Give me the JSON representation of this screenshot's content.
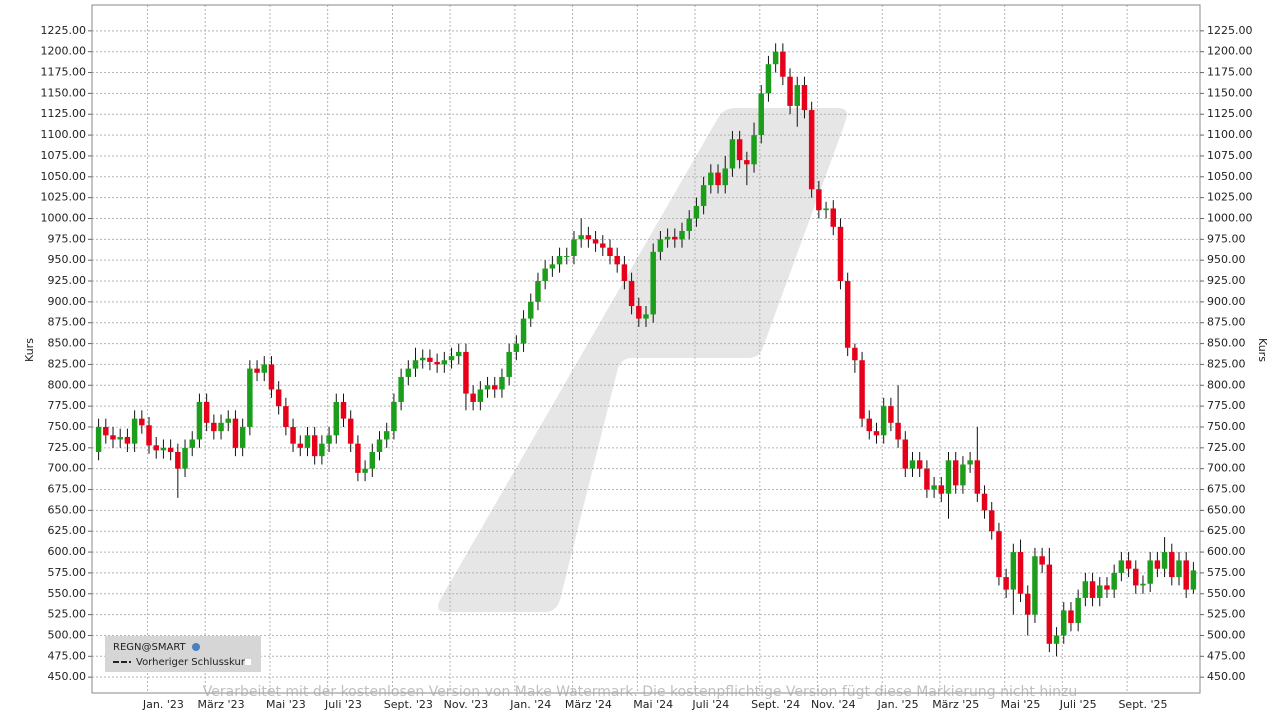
{
  "chart_data": {
    "type": "candlestick",
    "y_label": "Kurs",
    "legend_series_label": "Vorheriger Schlusskurs",
    "watermark": "Verarbeitet mit der kostenlosen Version von Make Watermark. Die kostenpflichtige Version fügt diese Markierung nicht hinzu",
    "grid": true,
    "up_color": "#1c9e1c",
    "down_color": "#e6001a",
    "ylim": [
      431,
      1256
    ],
    "yticks": [
      {
        "value": 450,
        "label": "450.00"
      },
      {
        "value": 475,
        "label": "475.00"
      },
      {
        "value": 500,
        "label": "500.00"
      },
      {
        "value": 525,
        "label": "525.00"
      },
      {
        "value": 550,
        "label": "550.00"
      },
      {
        "value": 575,
        "label": "575.00"
      },
      {
        "value": 600,
        "label": "600.00"
      },
      {
        "value": 625,
        "label": "625.00"
      },
      {
        "value": 650,
        "label": "650.00"
      },
      {
        "value": 675,
        "label": "675.00"
      },
      {
        "value": 700,
        "label": "700.00"
      },
      {
        "value": 725,
        "label": "725.00"
      },
      {
        "value": 750,
        "label": "750.00"
      },
      {
        "value": 775,
        "label": "775.00"
      },
      {
        "value": 800,
        "label": "800.00"
      },
      {
        "value": 825,
        "label": "825.00"
      },
      {
        "value": 850,
        "label": "850.00"
      },
      {
        "value": 875,
        "label": "875.00"
      },
      {
        "value": 900,
        "label": "900.00"
      },
      {
        "value": 925,
        "label": "925.00"
      },
      {
        "value": 950,
        "label": "950.00"
      },
      {
        "value": 975,
        "label": "975.00"
      },
      {
        "value": 1000,
        "label": "1000.00"
      },
      {
        "value": 1025,
        "label": "1025.00"
      },
      {
        "value": 1050,
        "label": "1050.00"
      },
      {
        "value": 1075,
        "label": "1075.00"
      },
      {
        "value": 1100,
        "label": "1100.00"
      },
      {
        "value": 1125,
        "label": "1125.00"
      },
      {
        "value": 1150,
        "label": "1150.00"
      },
      {
        "value": 1175,
        "label": "1175.00"
      },
      {
        "value": 1200,
        "label": "1200.00"
      },
      {
        "value": 1225,
        "label": "1225.00"
      }
    ],
    "categories": [
      null,
      null,
      null,
      null,
      null,
      null,
      null,
      null,
      null,
      "Jan. '23",
      null,
      null,
      null,
      null,
      null,
      null,
      null,
      "März '23",
      null,
      null,
      null,
      null,
      null,
      null,
      null,
      null,
      "Mai '23",
      null,
      null,
      null,
      null,
      null,
      null,
      null,
      "Juli '23",
      null,
      null,
      null,
      null,
      null,
      null,
      null,
      null,
      "Sept. '23",
      null,
      null,
      null,
      null,
      null,
      null,
      null,
      "Nov. '23",
      null,
      null,
      null,
      null,
      null,
      null,
      null,
      null,
      "Jan. '24",
      null,
      null,
      null,
      null,
      null,
      null,
      null,
      "März '24",
      null,
      null,
      null,
      null,
      null,
      null,
      null,
      null,
      "Mai '24",
      null,
      null,
      null,
      null,
      null,
      null,
      null,
      "Juli '24",
      null,
      null,
      null,
      null,
      null,
      null,
      null,
      null,
      "Sept. '24",
      null,
      null,
      null,
      null,
      null,
      null,
      null,
      "Nov. '24",
      null,
      null,
      null,
      null,
      null,
      null,
      null,
      null,
      "Jan. '25",
      null,
      null,
      null,
      null,
      null,
      null,
      null,
      "März '25",
      null,
      null,
      null,
      null,
      null,
      null,
      null,
      null,
      "Mai '25",
      null,
      null,
      null,
      null,
      null,
      null,
      null,
      "Juli '25",
      null,
      null,
      null,
      null,
      null,
      null,
      null,
      null,
      "Sept. '25",
      null,
      null,
      null,
      null,
      null,
      null,
      null
    ],
    "series": [
      {
        "name": "REGN@SMART",
        "open": [
          720,
          750,
          740,
          735,
          738,
          730,
          760,
          752,
          728,
          722,
          725,
          720,
          700,
          725,
          735,
          780,
          755,
          745,
          755,
          760,
          725,
          750,
          820,
          815,
          825,
          795,
          775,
          750,
          730,
          725,
          740,
          715,
          730,
          740,
          780,
          760,
          730,
          695,
          700,
          720,
          735,
          745,
          780,
          810,
          820,
          830,
          833,
          828,
          825,
          830,
          835,
          840,
          790,
          780,
          795,
          800,
          795,
          810,
          840,
          850,
          880,
          900,
          925,
          940,
          945,
          955,
          955,
          975,
          980,
          975,
          970,
          965,
          955,
          945,
          925,
          895,
          880,
          885,
          960,
          975,
          978,
          975,
          985,
          1000,
          1015,
          1040,
          1055,
          1040,
          1060,
          1095,
          1070,
          1065,
          1100,
          1150,
          1185,
          1200,
          1170,
          1135,
          1160,
          1130,
          1035,
          1010,
          1012,
          990,
          925,
          845,
          830,
          760,
          745,
          740,
          775,
          755,
          735,
          700,
          710,
          700,
          675,
          680,
          670,
          710,
          680,
          705,
          710,
          670,
          650,
          625,
          570,
          555,
          600,
          550,
          525,
          595,
          585,
          490,
          500,
          530,
          515,
          545,
          565,
          545,
          560,
          555,
          575,
          590,
          580,
          560,
          562,
          590,
          580,
          600,
          570,
          590,
          555
        ],
        "high": [
          760,
          760,
          750,
          748,
          748,
          770,
          770,
          762,
          738,
          735,
          735,
          730,
          735,
          745,
          790,
          790,
          765,
          765,
          770,
          770,
          760,
          830,
          830,
          835,
          835,
          805,
          785,
          760,
          740,
          750,
          750,
          740,
          750,
          790,
          790,
          770,
          740,
          710,
          730,
          745,
          755,
          790,
          820,
          830,
          845,
          843,
          843,
          838,
          840,
          845,
          850,
          850,
          800,
          805,
          810,
          810,
          820,
          850,
          860,
          890,
          910,
          935,
          950,
          955,
          965,
          965,
          985,
          1000,
          990,
          985,
          980,
          975,
          965,
          955,
          935,
          905,
          895,
          970,
          985,
          988,
          988,
          995,
          1010,
          1025,
          1050,
          1065,
          1065,
          1075,
          1105,
          1105,
          1080,
          1115,
          1160,
          1195,
          1210,
          1210,
          1180,
          1170,
          1170,
          1140,
          1045,
          1020,
          1022,
          1000,
          935,
          850,
          840,
          770,
          755,
          785,
          785,
          800,
          745,
          720,
          720,
          710,
          690,
          690,
          720,
          720,
          715,
          720,
          750,
          680,
          660,
          635,
          580,
          610,
          615,
          560,
          605,
          605,
          605,
          510,
          540,
          540,
          555,
          575,
          575,
          570,
          570,
          585,
          600,
          600,
          590,
          572,
          600,
          600,
          618,
          610,
          600,
          600,
          588
        ],
        "low": [
          710,
          730,
          725,
          725,
          720,
          720,
          742,
          718,
          712,
          712,
          710,
          665,
          690,
          715,
          725,
          745,
          735,
          735,
          745,
          715,
          715,
          740,
          805,
          805,
          785,
          765,
          740,
          720,
          715,
          715,
          705,
          705,
          720,
          730,
          750,
          720,
          685,
          685,
          690,
          710,
          725,
          735,
          770,
          800,
          810,
          820,
          818,
          815,
          815,
          820,
          825,
          770,
          770,
          770,
          785,
          785,
          785,
          800,
          830,
          840,
          870,
          890,
          915,
          930,
          935,
          945,
          945,
          965,
          965,
          960,
          955,
          945,
          935,
          915,
          885,
          870,
          870,
          875,
          950,
          965,
          965,
          965,
          975,
          990,
          1005,
          1030,
          1030,
          1030,
          1050,
          1060,
          1040,
          1055,
          1090,
          1140,
          1175,
          1160,
          1125,
          1110,
          1120,
          1025,
          1000,
          1000,
          980,
          915,
          835,
          815,
          750,
          735,
          730,
          730,
          745,
          725,
          690,
          690,
          690,
          665,
          665,
          660,
          640,
          670,
          670,
          695,
          660,
          640,
          615,
          560,
          545,
          525,
          540,
          500,
          515,
          575,
          480,
          475,
          490,
          505,
          505,
          535,
          535,
          535,
          545,
          545,
          565,
          570,
          550,
          550,
          552,
          570,
          570,
          560,
          560,
          545,
          550
        ],
        "close": [
          750,
          740,
          735,
          738,
          730,
          760,
          752,
          728,
          722,
          725,
          720,
          700,
          725,
          735,
          780,
          755,
          745,
          755,
          760,
          725,
          750,
          820,
          815,
          825,
          795,
          775,
          750,
          730,
          725,
          740,
          715,
          730,
          740,
          780,
          760,
          730,
          695,
          700,
          720,
          735,
          745,
          780,
          810,
          820,
          830,
          833,
          828,
          825,
          830,
          835,
          840,
          790,
          780,
          795,
          800,
          795,
          810,
          840,
          850,
          880,
          900,
          925,
          940,
          945,
          955,
          955,
          975,
          980,
          975,
          970,
          965,
          955,
          945,
          925,
          895,
          880,
          885,
          960,
          975,
          978,
          975,
          985,
          1000,
          1015,
          1040,
          1055,
          1040,
          1060,
          1095,
          1070,
          1065,
          1100,
          1150,
          1185,
          1200,
          1170,
          1135,
          1160,
          1130,
          1035,
          1010,
          1012,
          990,
          925,
          845,
          830,
          760,
          745,
          740,
          775,
          755,
          735,
          700,
          710,
          700,
          675,
          680,
          670,
          710,
          680,
          705,
          710,
          670,
          650,
          625,
          570,
          555,
          600,
          550,
          525,
          595,
          585,
          490,
          500,
          530,
          515,
          545,
          565,
          545,
          560,
          555,
          575,
          590,
          580,
          560,
          562,
          590,
          580,
          600,
          570,
          590,
          555,
          578
        ]
      }
    ]
  }
}
